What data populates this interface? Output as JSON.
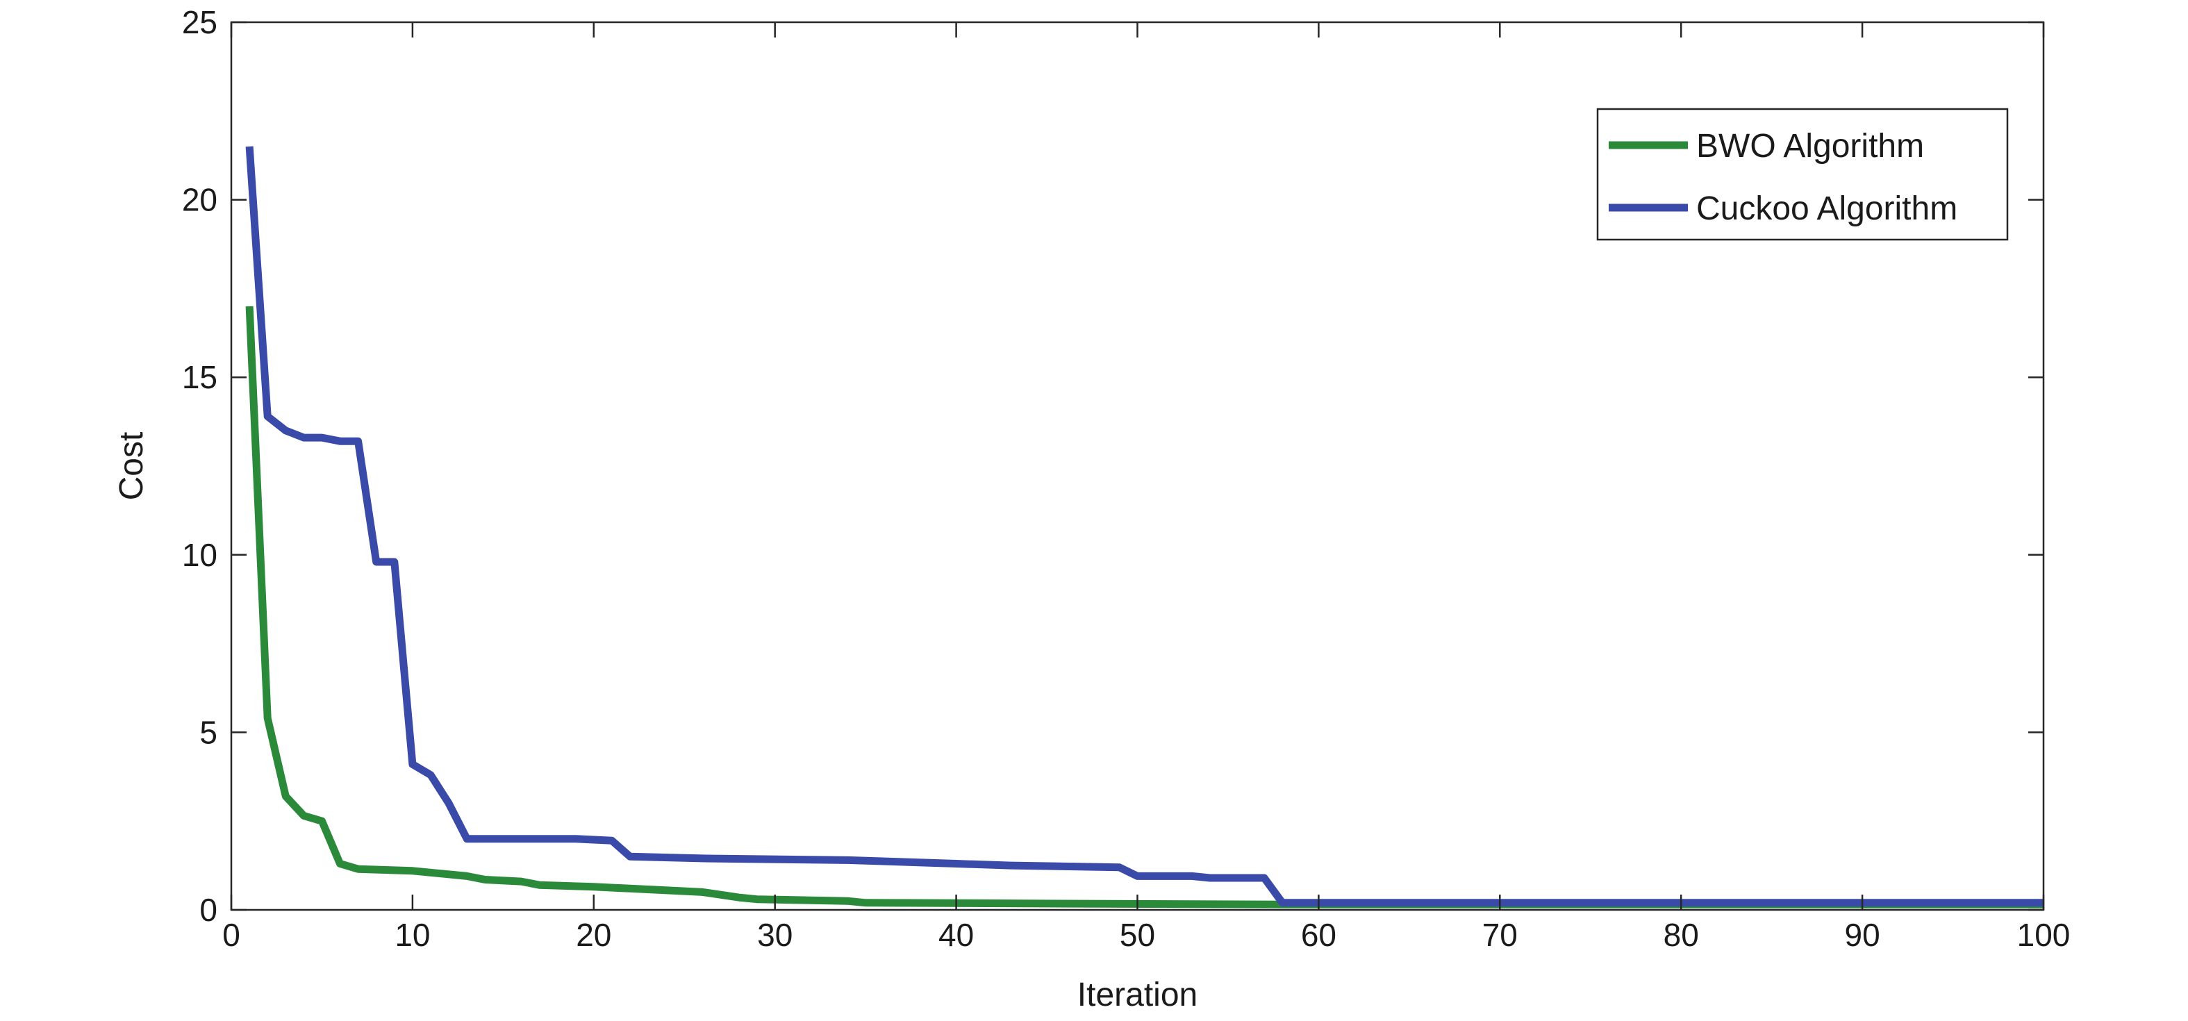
{
  "chart_data": {
    "type": "line",
    "title": "",
    "xlabel": "Iteration",
    "ylabel": "Cost",
    "xlim": [
      0,
      100
    ],
    "ylim": [
      0,
      25
    ],
    "xticks": [
      0,
      10,
      20,
      30,
      40,
      50,
      60,
      70,
      80,
      90,
      100
    ],
    "yticks": [
      0,
      5,
      10,
      15,
      20,
      25
    ],
    "grid": false,
    "legend_position": "top-right",
    "series": [
      {
        "name": "BWO Algorithm",
        "color": "#2a8a3a",
        "points": [
          [
            1,
            17.0
          ],
          [
            2,
            5.4
          ],
          [
            3,
            3.2
          ],
          [
            4,
            2.65
          ],
          [
            5,
            2.5
          ],
          [
            6,
            1.3
          ],
          [
            7,
            1.15
          ],
          [
            10,
            1.1
          ],
          [
            11,
            1.05
          ],
          [
            13,
            0.95
          ],
          [
            14,
            0.85
          ],
          [
            16,
            0.8
          ],
          [
            17,
            0.7
          ],
          [
            20,
            0.65
          ],
          [
            22,
            0.6
          ],
          [
            26,
            0.5
          ],
          [
            28,
            0.35
          ],
          [
            29,
            0.3
          ],
          [
            34,
            0.25
          ],
          [
            35,
            0.2
          ],
          [
            58,
            0.15
          ],
          [
            100,
            0.15
          ]
        ]
      },
      {
        "name": "Cuckoo Algorithm",
        "color": "#3a4aa8",
        "points": [
          [
            1,
            21.5
          ],
          [
            2,
            13.9
          ],
          [
            3,
            13.5
          ],
          [
            4,
            13.3
          ],
          [
            5,
            13.3
          ],
          [
            6,
            13.2
          ],
          [
            7,
            13.2
          ],
          [
            8,
            9.8
          ],
          [
            9,
            9.8
          ],
          [
            10,
            4.1
          ],
          [
            11,
            3.8
          ],
          [
            12,
            3.0
          ],
          [
            13,
            2.0
          ],
          [
            19,
            2.0
          ],
          [
            21,
            1.95
          ],
          [
            22,
            1.5
          ],
          [
            26,
            1.45
          ],
          [
            34,
            1.4
          ],
          [
            40,
            1.3
          ],
          [
            43,
            1.25
          ],
          [
            49,
            1.2
          ],
          [
            50,
            0.95
          ],
          [
            53,
            0.95
          ],
          [
            54,
            0.9
          ],
          [
            57,
            0.9
          ],
          [
            58,
            0.2
          ],
          [
            100,
            0.2
          ]
        ]
      }
    ]
  }
}
